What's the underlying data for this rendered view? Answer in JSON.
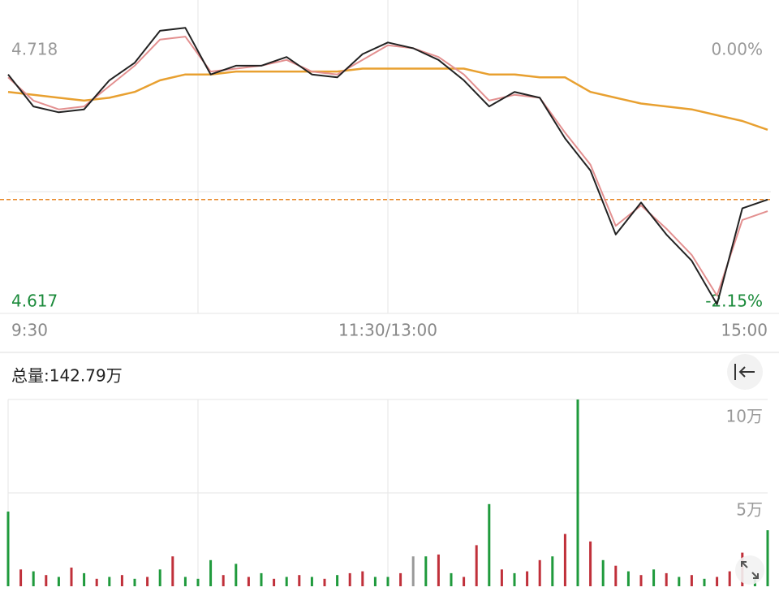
{
  "chart_data": [
    {
      "type": "line",
      "x": [
        0,
        8,
        16,
        24,
        32,
        40,
        48,
        56,
        64,
        72,
        80,
        88,
        96,
        104,
        112,
        120,
        128,
        136,
        144,
        152,
        160,
        168,
        176,
        184,
        192,
        200,
        208,
        216,
        224,
        232,
        240
      ],
      "xlim": [
        0,
        240
      ],
      "xticks": [
        {
          "value": 0,
          "label": "9:30"
        },
        {
          "value": 120,
          "label": "11:30/13:00"
        },
        {
          "value": 240,
          "label": "15:00"
        }
      ],
      "xgrid": [
        60,
        120,
        180
      ],
      "ylim": [
        4.617,
        4.718
      ],
      "yticks": [
        4.718,
        4.617
      ],
      "y2lim": [
        -2.15,
        0
      ],
      "y2ticks": [
        {
          "value": 0,
          "label": "0.00%"
        },
        {
          "value": -2.15,
          "label": "-2.15%"
        }
      ],
      "reference_line": 4.655,
      "reference_color": "#e8892a",
      "low_color": "#1a8a3a",
      "series": [
        {
          "color": "#e8a030",
          "values": [
            4.692,
            4.691,
            4.69,
            4.689,
            4.69,
            4.692,
            4.696,
            4.698,
            4.698,
            4.699,
            4.699,
            4.699,
            4.699,
            4.699,
            4.7,
            4.7,
            4.7,
            4.7,
            4.7,
            4.698,
            4.698,
            4.697,
            4.697,
            4.692,
            4.69,
            4.688,
            4.687,
            4.686,
            4.684,
            4.682,
            4.679
          ]
        },
        {
          "color": "#e39090",
          "values": [
            4.697,
            4.689,
            4.686,
            4.687,
            4.694,
            4.701,
            4.71,
            4.711,
            4.699,
            4.7,
            4.701,
            4.703,
            4.699,
            4.698,
            4.703,
            4.708,
            4.707,
            4.704,
            4.698,
            4.689,
            4.691,
            4.69,
            4.678,
            4.667,
            4.646,
            4.653,
            4.645,
            4.636,
            4.622,
            4.648,
            4.651
          ]
        },
        {
          "color": "#222222",
          "values": [
            4.698,
            4.687,
            4.685,
            4.686,
            4.696,
            4.702,
            4.713,
            4.714,
            4.698,
            4.701,
            4.701,
            4.704,
            4.698,
            4.697,
            4.705,
            4.709,
            4.707,
            4.703,
            4.696,
            4.687,
            4.692,
            4.69,
            4.676,
            4.665,
            4.643,
            4.654,
            4.643,
            4.634,
            4.619,
            4.652,
            4.655
          ]
        }
      ]
    },
    {
      "type": "bar",
      "title": "总量:142.79万",
      "x": [
        0,
        4,
        8,
        12,
        16,
        20,
        24,
        28,
        32,
        36,
        40,
        44,
        48,
        52,
        56,
        60,
        64,
        68,
        72,
        76,
        80,
        84,
        88,
        92,
        96,
        100,
        104,
        108,
        112,
        116,
        120,
        124,
        128,
        132,
        136,
        140,
        144,
        148,
        152,
        156,
        160,
        164,
        168,
        172,
        176,
        180,
        184,
        188,
        192,
        196,
        200,
        204,
        208,
        212,
        216,
        220,
        224,
        228,
        232,
        236,
        240
      ],
      "xlim": [
        0,
        240
      ],
      "xgrid": [
        60,
        120,
        180
      ],
      "ylim": [
        0,
        100000
      ],
      "yticks": [
        {
          "value": 50000,
          "label": "5万"
        },
        {
          "value": 100000,
          "label": "10万"
        }
      ],
      "values": [
        40000,
        9000,
        8000,
        6000,
        5000,
        10000,
        7000,
        4000,
        5000,
        6000,
        4000,
        5000,
        9000,
        16000,
        5000,
        4000,
        14000,
        6000,
        12000,
        5000,
        7000,
        4000,
        5000,
        6000,
        5000,
        4000,
        6000,
        7000,
        8000,
        5000,
        5000,
        7000,
        16000,
        16000,
        17000,
        7000,
        5000,
        22000,
        44000,
        9000,
        7000,
        8000,
        14000,
        16000,
        28000,
        100000,
        24000,
        14000,
        11000,
        8000,
        6000,
        9000,
        7000,
        5000,
        6000,
        4000,
        5000,
        8000,
        18000,
        6000,
        30000
      ],
      "colors": [
        "#1f9a3c",
        "#c0303a",
        "#1f9a3c",
        "#c0303a",
        "#1f9a3c",
        "#c0303a",
        "#1f9a3c",
        "#c0303a",
        "#1f9a3c",
        "#c0303a",
        "#1f9a3c",
        "#c0303a",
        "#1f9a3c",
        "#c0303a",
        "#1f9a3c",
        "#1f9a3c",
        "#1f9a3c",
        "#c0303a",
        "#1f9a3c",
        "#c0303a",
        "#1f9a3c",
        "#c0303a",
        "#1f9a3c",
        "#c0303a",
        "#1f9a3c",
        "#c0303a",
        "#1f9a3c",
        "#c0303a",
        "#c0303a",
        "#1f9a3c",
        "#1f9a3c",
        "#c0303a",
        "#999999",
        "#1f9a3c",
        "#c0303a",
        "#1f9a3c",
        "#c0303a",
        "#c0303a",
        "#1f9a3c",
        "#c0303a",
        "#1f9a3c",
        "#c0303a",
        "#c0303a",
        "#1f9a3c",
        "#c0303a",
        "#1f9a3c",
        "#c0303a",
        "#1f9a3c",
        "#c0303a",
        "#1f9a3c",
        "#c0303a",
        "#1f9a3c",
        "#c0303a",
        "#1f9a3c",
        "#c0303a",
        "#1f9a3c",
        "#c0303a",
        "#c0303a",
        "#c0303a",
        "#1f9a3c",
        "#1f9a3c"
      ]
    }
  ]
}
